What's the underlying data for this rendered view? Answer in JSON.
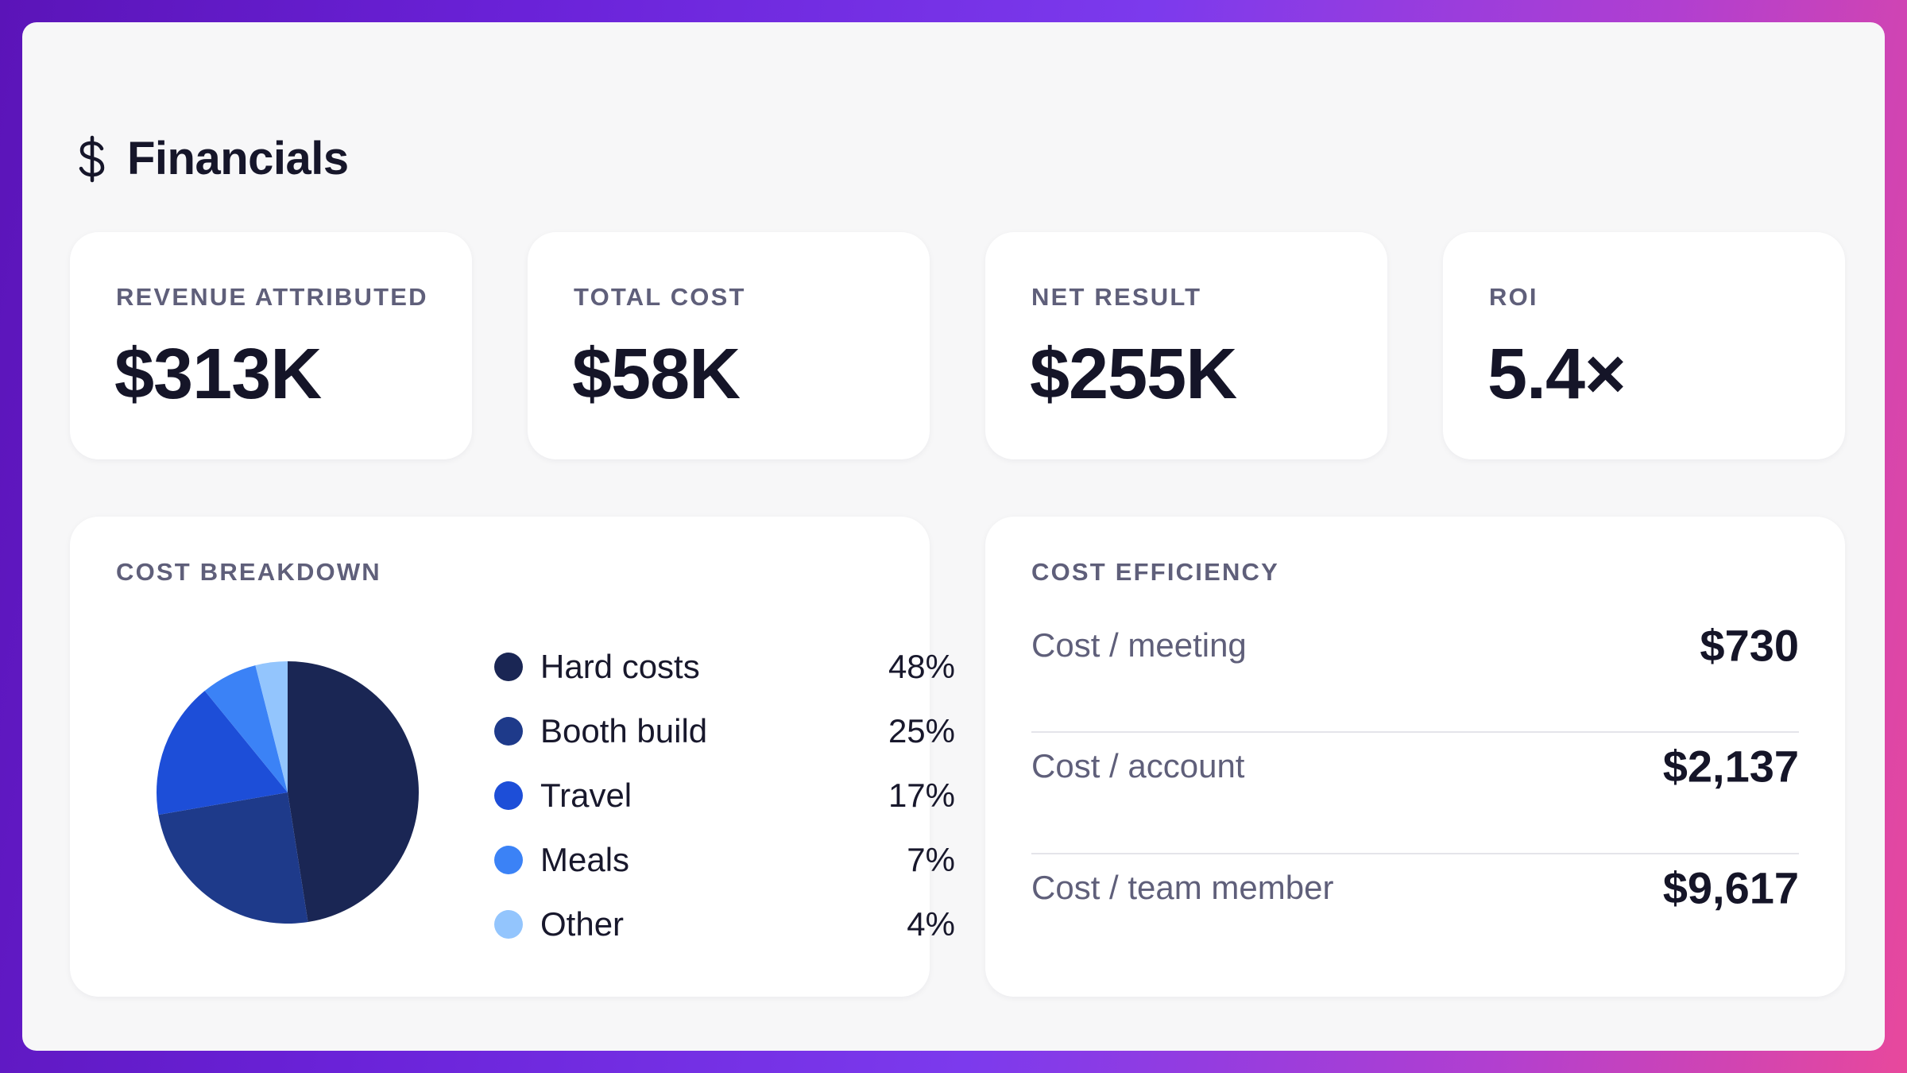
{
  "header": {
    "icon": "dollar-icon",
    "title": "Financials"
  },
  "kpis": [
    {
      "label": "REVENUE ATTRIBUTED",
      "value": "$313K"
    },
    {
      "label": "TOTAL COST",
      "value": "$58K"
    },
    {
      "label": "NET RESULT",
      "value": "$255K"
    },
    {
      "label": "ROI",
      "value": "5.4×"
    }
  ],
  "cost_breakdown": {
    "label": "COST BREAKDOWN",
    "items": [
      {
        "label": "Hard costs",
        "value": "48%",
        "color": "#1a2654"
      },
      {
        "label": "Booth build",
        "value": "25%",
        "color": "#1e3a8a"
      },
      {
        "label": "Travel",
        "value": "17%",
        "color": "#1d4ed8"
      },
      {
        "label": "Meals",
        "value": "7%",
        "color": "#3b82f6"
      },
      {
        "label": "Other",
        "value": "4%",
        "color": "#93c5fd"
      }
    ]
  },
  "chart_data": {
    "type": "pie",
    "categories": [
      "Hard costs",
      "Booth build",
      "Travel",
      "Meals",
      "Other"
    ],
    "values": [
      48,
      25,
      17,
      7,
      4
    ],
    "colors": [
      "#1a2654",
      "#1e3a8a",
      "#1d4ed8",
      "#3b82f6",
      "#93c5fd"
    ],
    "legend": "right"
  },
  "cost_efficiency": {
    "label": "COST EFFICIENCY",
    "rows": [
      {
        "label": "Cost / meeting",
        "value": "$730"
      },
      {
        "label": "Cost / account",
        "value": "$2,137"
      },
      {
        "label": "Cost / team member",
        "value": "$9,617"
      }
    ]
  }
}
